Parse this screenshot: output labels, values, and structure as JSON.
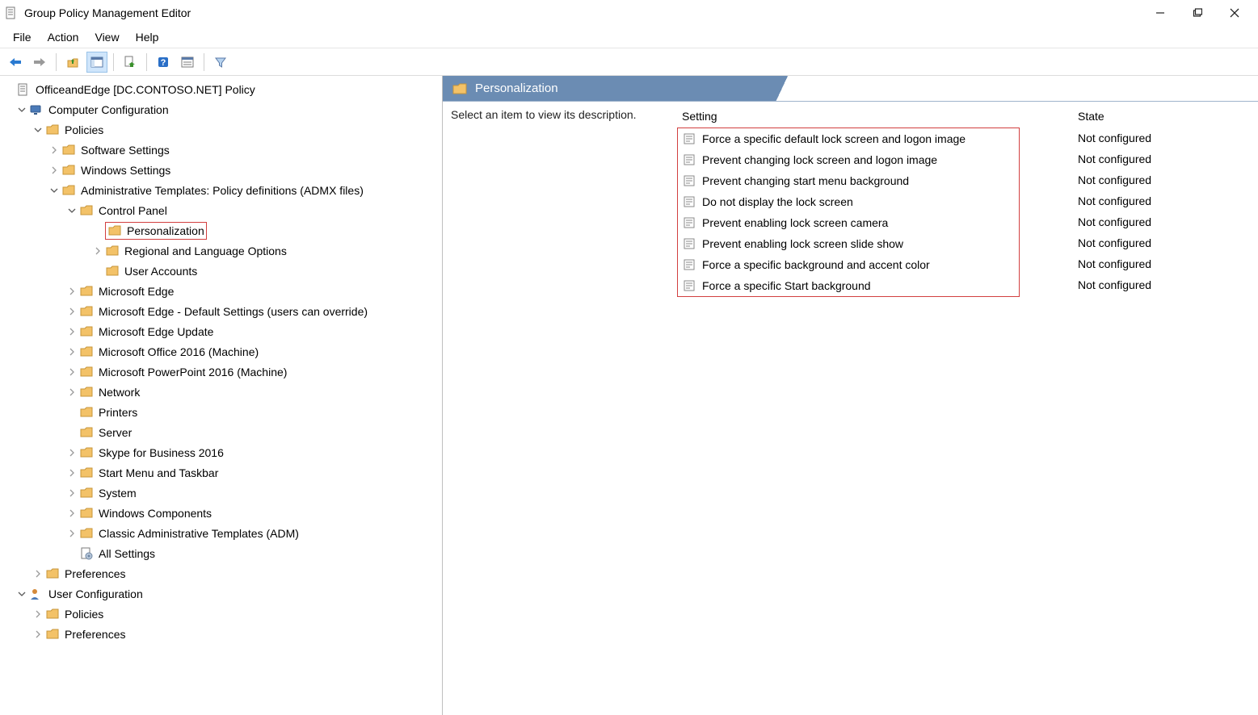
{
  "window": {
    "title": "Group Policy Management Editor"
  },
  "menu": {
    "file": "File",
    "action": "Action",
    "view": "View",
    "help": "Help"
  },
  "tree": {
    "root": "OfficeandEdge [DC.CONTOSO.NET] Policy",
    "computerConfig": "Computer Configuration",
    "policies": "Policies",
    "softwareSettings": "Software Settings",
    "windowsSettings": "Windows Settings",
    "adminTemplates": "Administrative Templates: Policy definitions (ADMX files)",
    "controlPanel": "Control Panel",
    "personalization": "Personalization",
    "regionalLang": "Regional and Language Options",
    "userAccounts": "User Accounts",
    "edge": "Microsoft Edge",
    "edgeDefault": "Microsoft Edge - Default Settings (users can override)",
    "edgeUpdate": "Microsoft Edge Update",
    "office2016": "Microsoft Office 2016 (Machine)",
    "ppt2016": "Microsoft PowerPoint 2016 (Machine)",
    "network": "Network",
    "printers": "Printers",
    "server": "Server",
    "skype": "Skype for Business 2016",
    "startMenu": "Start Menu and Taskbar",
    "system": "System",
    "windowsComponents": "Windows Components",
    "classicAdm": "Classic Administrative Templates (ADM)",
    "allSettings": "All Settings",
    "preferences": "Preferences",
    "userConfig": "User Configuration",
    "userPolicies": "Policies",
    "userPreferences": "Preferences"
  },
  "detail": {
    "headerTitle": "Personalization",
    "descPrompt": "Select an item to view its description.",
    "col_setting": "Setting",
    "col_state": "State",
    "settings": [
      {
        "label": "Force a specific default lock screen and logon image",
        "state": "Not configured"
      },
      {
        "label": "Prevent changing lock screen and logon image",
        "state": "Not configured"
      },
      {
        "label": "Prevent changing start menu background",
        "state": "Not configured"
      },
      {
        "label": "Do not display the lock screen",
        "state": "Not configured"
      },
      {
        "label": "Prevent enabling lock screen camera",
        "state": "Not configured"
      },
      {
        "label": "Prevent enabling lock screen slide show",
        "state": "Not configured"
      },
      {
        "label": "Force a specific background and accent color",
        "state": "Not configured"
      },
      {
        "label": "Force a specific Start background",
        "state": "Not configured"
      }
    ]
  },
  "colors": {
    "headerBg": "#6b8cb3",
    "redHighlight": "#d23f3f",
    "folderFill": "#f3c268",
    "folderStroke": "#c7953a"
  }
}
